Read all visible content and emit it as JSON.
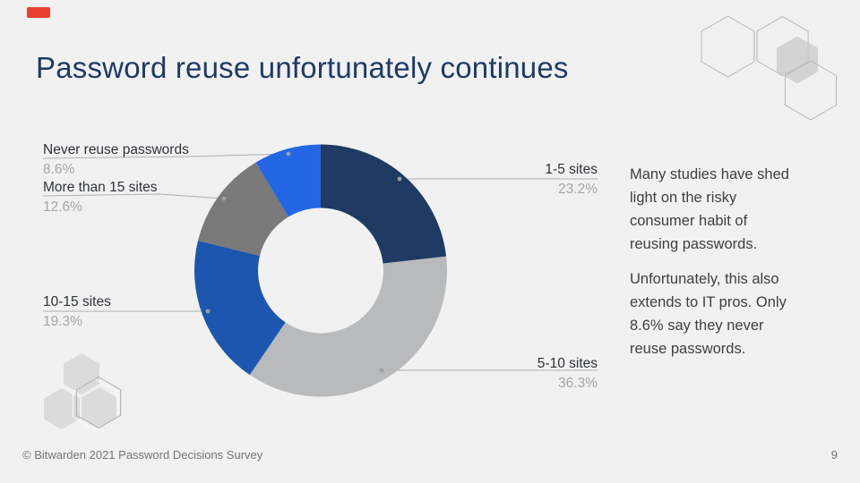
{
  "slide": {
    "title": "Password reuse unfortunately continues",
    "title_color": "#1e3a66",
    "background_color": "#f1f1f2",
    "accent_badge_color": "#e8422e",
    "footer": "© Bitwarden 2021 Password Decisions Survey",
    "page_number": "9"
  },
  "chart_data": {
    "type": "pie",
    "subtype": "donut",
    "title": "",
    "legend_position": "callout-labels",
    "categories": [
      "1-5 sites",
      "5-10 sites",
      "10-15 sites",
      "More than 15 sites",
      "Never reuse passwords"
    ],
    "values": [
      23.2,
      36.3,
      19.3,
      12.6,
      8.6
    ],
    "segments": [
      {
        "label": "1-5 sites",
        "pct_label": "23.2%",
        "value": 23.2,
        "color": "#1f3b63"
      },
      {
        "label": "5-10 sites",
        "pct_label": "36.3%",
        "value": 36.3,
        "color": "#b9babb"
      },
      {
        "label": "10-15 sites",
        "pct_label": "19.3%",
        "value": 19.3,
        "color": "#1d56ae"
      },
      {
        "label": "More than 15 sites",
        "pct_label": "12.6%",
        "value": 12.6,
        "color": "#7a7a7a"
      },
      {
        "label": "Never reuse passwords",
        "pct_label": "8.6%",
        "value": 8.6,
        "color": "#2367e4"
      }
    ]
  },
  "side_text": {
    "paragraph1": "Many studies have shed\nlight on the risky\nconsumer habit of\nreusing passwords.",
    "paragraph2": "Unfortunately, this also\nextends to IT pros. Only\n8.6% say they never\nreuse passwords."
  }
}
